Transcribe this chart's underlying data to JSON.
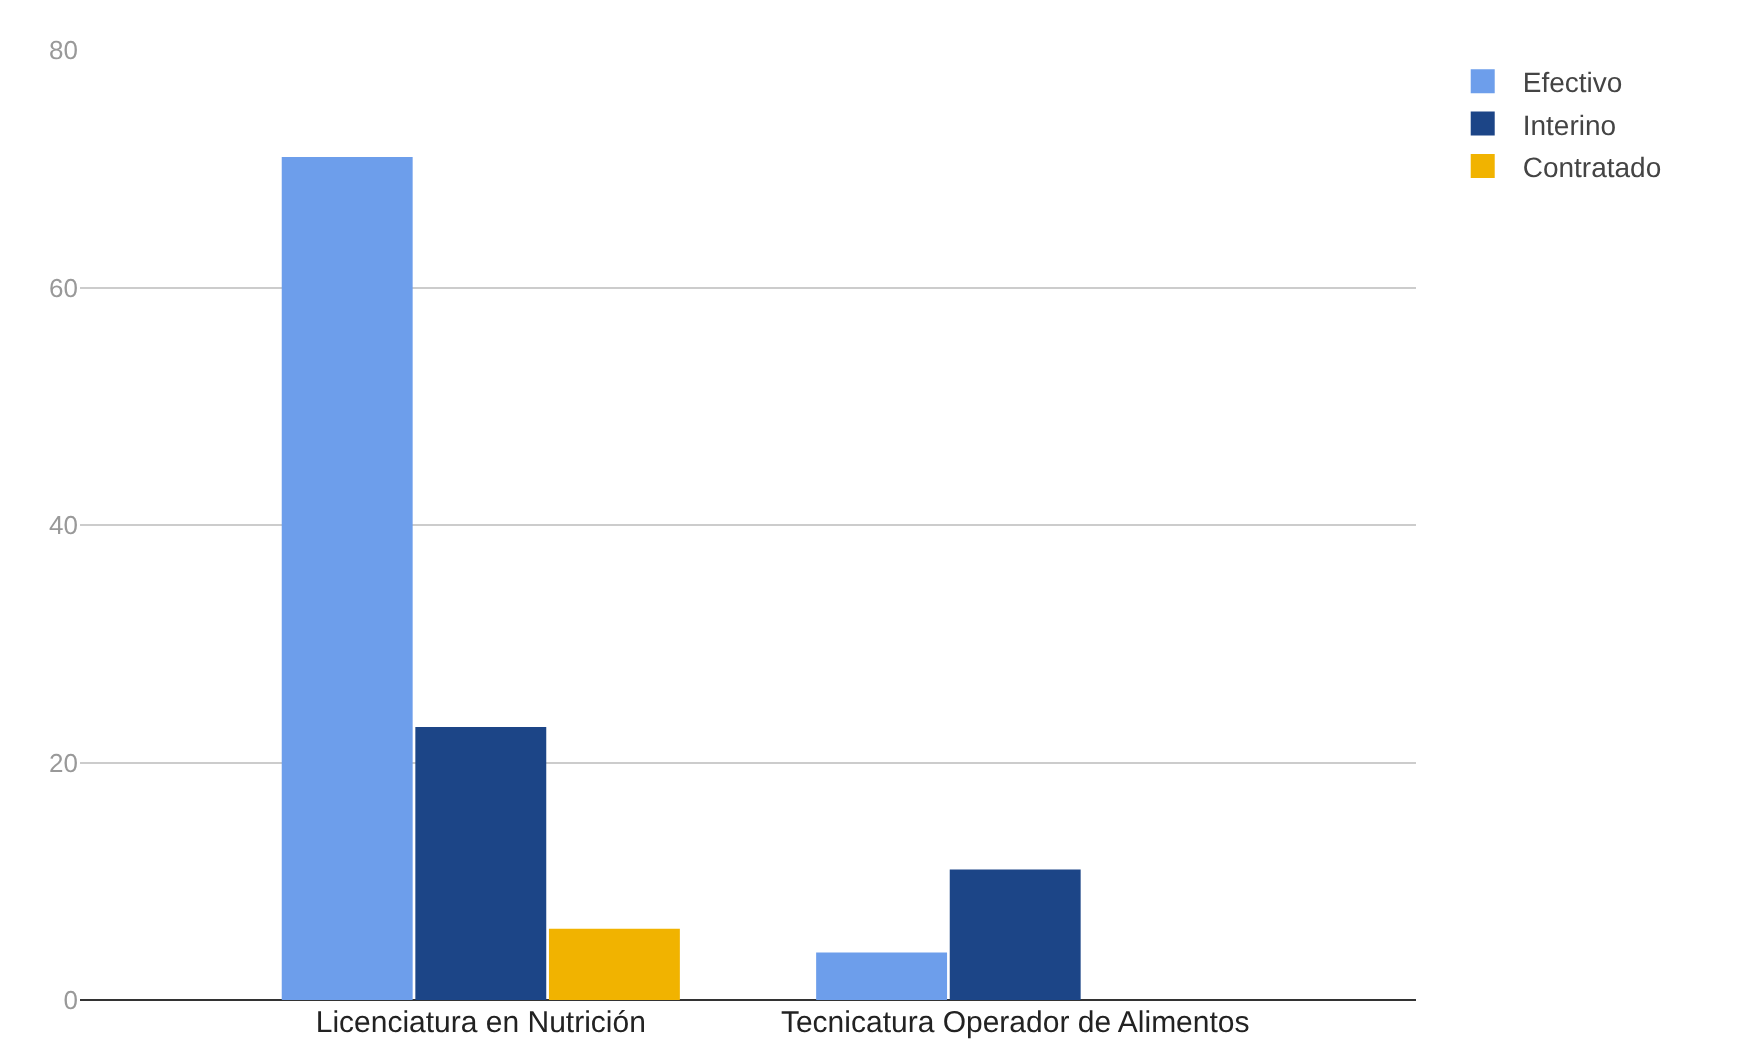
{
  "chart_data": {
    "type": "bar",
    "categories": [
      "Licenciatura en Nutrición",
      "Tecnicatura Operador de Alimentos"
    ],
    "series": [
      {
        "name": "Efectivo",
        "color": "#6d9eeb",
        "values": [
          71,
          4
        ]
      },
      {
        "name": "Interino",
        "color": "#1c4587",
        "values": [
          23,
          11
        ]
      },
      {
        "name": "Contratado",
        "color": "#f1b300",
        "values": [
          6,
          0
        ]
      }
    ],
    "ylim": [
      0,
      80
    ],
    "yticks": [
      0,
      20,
      40,
      60,
      80
    ],
    "grid": "y",
    "legend": "top right"
  }
}
